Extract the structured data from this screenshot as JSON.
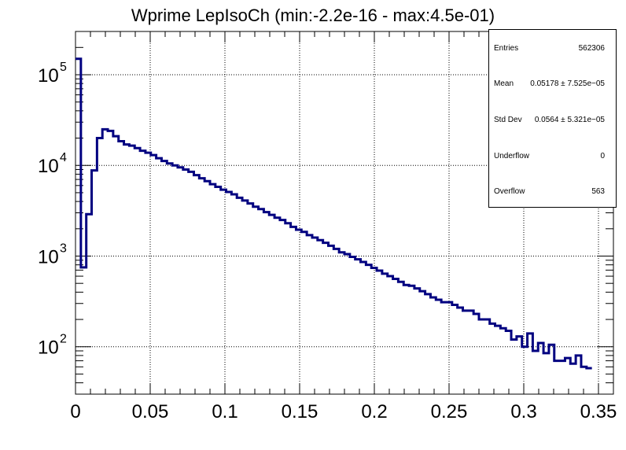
{
  "chart_data": {
    "type": "histogram",
    "title": "Wprime LepIsoCh (min:-2.2e-16 - max:4.5e-01)",
    "xlabel": "",
    "ylabel": "",
    "xlim": [
      0,
      0.36
    ],
    "ylim": [
      30,
      300000
    ],
    "yscale": "log",
    "grid": true,
    "line_color": "#000080",
    "x_ticks": [
      0,
      0.05,
      0.1,
      0.15,
      0.2,
      0.25,
      0.3,
      0.35
    ],
    "x_tick_labels": [
      "0",
      "0.05",
      "0.1",
      "0.15",
      "0.2",
      "0.25",
      "0.3",
      "0.35"
    ],
    "y_ticks": [
      100,
      1000,
      10000,
      100000
    ],
    "y_tick_bases": [
      "10",
      "10",
      "10",
      "10"
    ],
    "y_tick_exps": [
      "2",
      "3",
      "4",
      "5"
    ],
    "bin_width": 0.0036,
    "bin_values": [
      150000,
      750,
      2900,
      8800,
      20000,
      25000,
      24000,
      21000,
      18500,
      17000,
      16500,
      15500,
      14500,
      13800,
      13000,
      12000,
      11200,
      10500,
      10000,
      9500,
      9000,
      8500,
      7800,
      7200,
      6700,
      6200,
      5800,
      5400,
      5100,
      4800,
      4400,
      4100,
      3800,
      3500,
      3300,
      3050,
      2850,
      2650,
      2500,
      2300,
      2100,
      1950,
      1850,
      1700,
      1600,
      1500,
      1400,
      1300,
      1200,
      1100,
      1050,
      980,
      920,
      860,
      800,
      740,
      690,
      640,
      600,
      560,
      520,
      480,
      470,
      440,
      410,
      380,
      350,
      330,
      310,
      310,
      290,
      270,
      250,
      250,
      230,
      200,
      200,
      180,
      170,
      160,
      150,
      120,
      130,
      100,
      140,
      90,
      110,
      85,
      105,
      70,
      70,
      75,
      65,
      80,
      60,
      58
    ]
  },
  "stats": {
    "entries": {
      "label": "Entries",
      "value": "562306"
    },
    "mean": {
      "label": "Mean",
      "value": "0.05178 ± 7.525e−05"
    },
    "std": {
      "label": "Std Dev",
      "value": "0.0564 ± 5.321e−05"
    },
    "underflow": {
      "label": "Underflow",
      "value": "0"
    },
    "overflow": {
      "label": "Overflow",
      "value": "563"
    }
  }
}
